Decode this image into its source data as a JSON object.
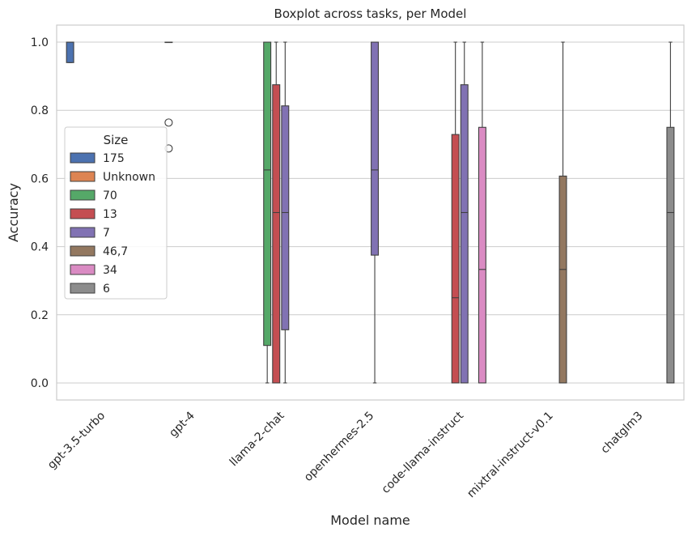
{
  "chart_data": {
    "type": "boxplot",
    "title": "Boxplot across tasks, per Model",
    "xlabel": "Model name",
    "ylabel": "Accuracy",
    "ylim": [
      -0.05,
      1.05
    ],
    "yticks": [
      0.0,
      0.2,
      0.4,
      0.6,
      0.8,
      1.0
    ],
    "ytick_labels": [
      "0.0",
      "0.2",
      "0.4",
      "0.6",
      "0.8",
      "1.0"
    ],
    "grid": true,
    "categories": [
      "gpt-3.5-turbo",
      "gpt-4",
      "llama-2-chat",
      "openhermes-2.5",
      "code-llama-instruct",
      "mixtral-instruct-v0.1",
      "chatglm3"
    ],
    "legend": {
      "title": "Size",
      "placement": "center-left",
      "entries": [
        {
          "label": "175",
          "color": "#4c72b0"
        },
        {
          "label": "Unknown",
          "color": "#dd8452"
        },
        {
          "label": "70",
          "color": "#55a868"
        },
        {
          "label": "13",
          "color": "#c44e52"
        },
        {
          "label": "7",
          "color": "#8172b3"
        },
        {
          "label": "46,7",
          "color": "#937860"
        },
        {
          "label": "34",
          "color": "#da8bc3"
        },
        {
          "label": "6",
          "color": "#8c8c8c"
        }
      ]
    },
    "boxes": [
      {
        "category": "gpt-3.5-turbo",
        "size": "175",
        "min": 0.94,
        "q1": 0.94,
        "median": 1.0,
        "q3": 1.0,
        "max": 1.0,
        "outliers": []
      },
      {
        "category": "gpt-4",
        "size": "Unknown",
        "min": 1.0,
        "q1": 1.0,
        "median": 1.0,
        "q3": 1.0,
        "max": 1.0,
        "outliers": [
          0.764,
          0.688
        ]
      },
      {
        "category": "llama-2-chat",
        "size": "70",
        "min": 0.0,
        "q1": 0.11,
        "median": 0.625,
        "q3": 1.0,
        "max": 1.0,
        "outliers": []
      },
      {
        "category": "llama-2-chat",
        "size": "13",
        "min": 0.0,
        "q1": 0.0,
        "median": 0.5,
        "q3": 0.875,
        "max": 1.0,
        "outliers": []
      },
      {
        "category": "llama-2-chat",
        "size": "7",
        "min": 0.0,
        "q1": 0.156,
        "median": 0.5,
        "q3": 0.813,
        "max": 1.0,
        "outliers": []
      },
      {
        "category": "openhermes-2.5",
        "size": "7",
        "min": 0.0,
        "q1": 0.375,
        "median": 0.625,
        "q3": 1.0,
        "max": 1.0,
        "outliers": []
      },
      {
        "category": "code-llama-instruct",
        "size": "13",
        "min": 0.0,
        "q1": 0.0,
        "median": 0.25,
        "q3": 0.729,
        "max": 1.0,
        "outliers": []
      },
      {
        "category": "code-llama-instruct",
        "size": "7",
        "min": 0.0,
        "q1": 0.0,
        "median": 0.5,
        "q3": 0.875,
        "max": 1.0,
        "outliers": []
      },
      {
        "category": "code-llama-instruct",
        "size": "34",
        "min": 0.0,
        "q1": 0.0,
        "median": 0.333,
        "q3": 0.75,
        "max": 1.0,
        "outliers": []
      },
      {
        "category": "mixtral-instruct-v0.1",
        "size": "46,7",
        "min": 0.0,
        "q1": 0.0,
        "median": 0.333,
        "q3": 0.607,
        "max": 1.0,
        "outliers": []
      },
      {
        "category": "chatglm3",
        "size": "6",
        "min": 0.0,
        "q1": 0.0,
        "median": 0.5,
        "q3": 0.75,
        "max": 1.0,
        "outliers": []
      }
    ]
  }
}
